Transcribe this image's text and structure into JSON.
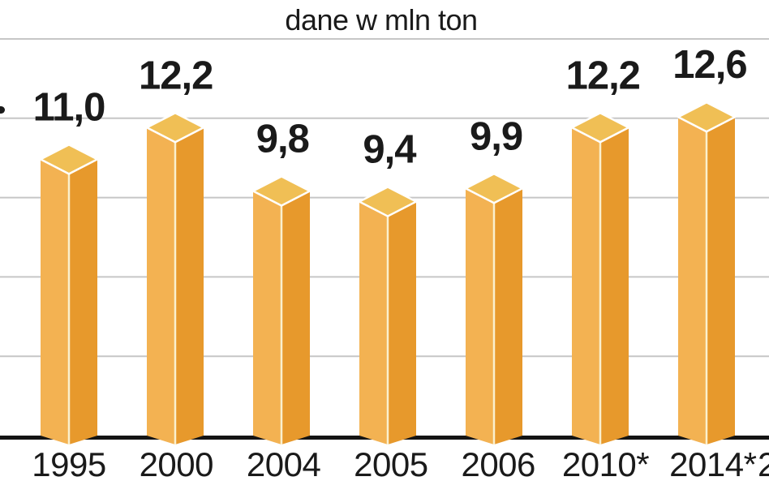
{
  "title": "dane w mln ton",
  "colors": {
    "background": "#FFFFFF",
    "bar_left_face": "#F3B252",
    "bar_right_face": "#E7992C",
    "bar_top_face": "#F0BF55",
    "bar_edge_highlight": "#FFFFFF",
    "bar_front_ridge": "#FAF0CE",
    "gridline": "#C6C6C6",
    "axis_line": "#141414",
    "text": "#1A1A1A"
  },
  "fragments": {
    "left_edge_label_fragment": "-",
    "partial_next_year_label": "2"
  },
  "chart_data": {
    "type": "bar",
    "style": "3d-column",
    "title": "dane w mln ton",
    "categories": [
      "1995",
      "2000",
      "2004",
      "2005",
      "2006",
      "2010*",
      "2014*"
    ],
    "values": [
      11.0,
      12.2,
      9.8,
      9.4,
      9.9,
      12.2,
      12.6
    ],
    "value_labels": [
      "11,0",
      "12,2",
      "9,8",
      "9,4",
      "9,9",
      "12,2",
      "12,6"
    ],
    "xlabel": "",
    "ylabel": "",
    "ylim": [
      0,
      15
    ],
    "gridline_step": 3,
    "grid": true,
    "legend": "none",
    "y_axis_tick_labels_visible": false
  }
}
